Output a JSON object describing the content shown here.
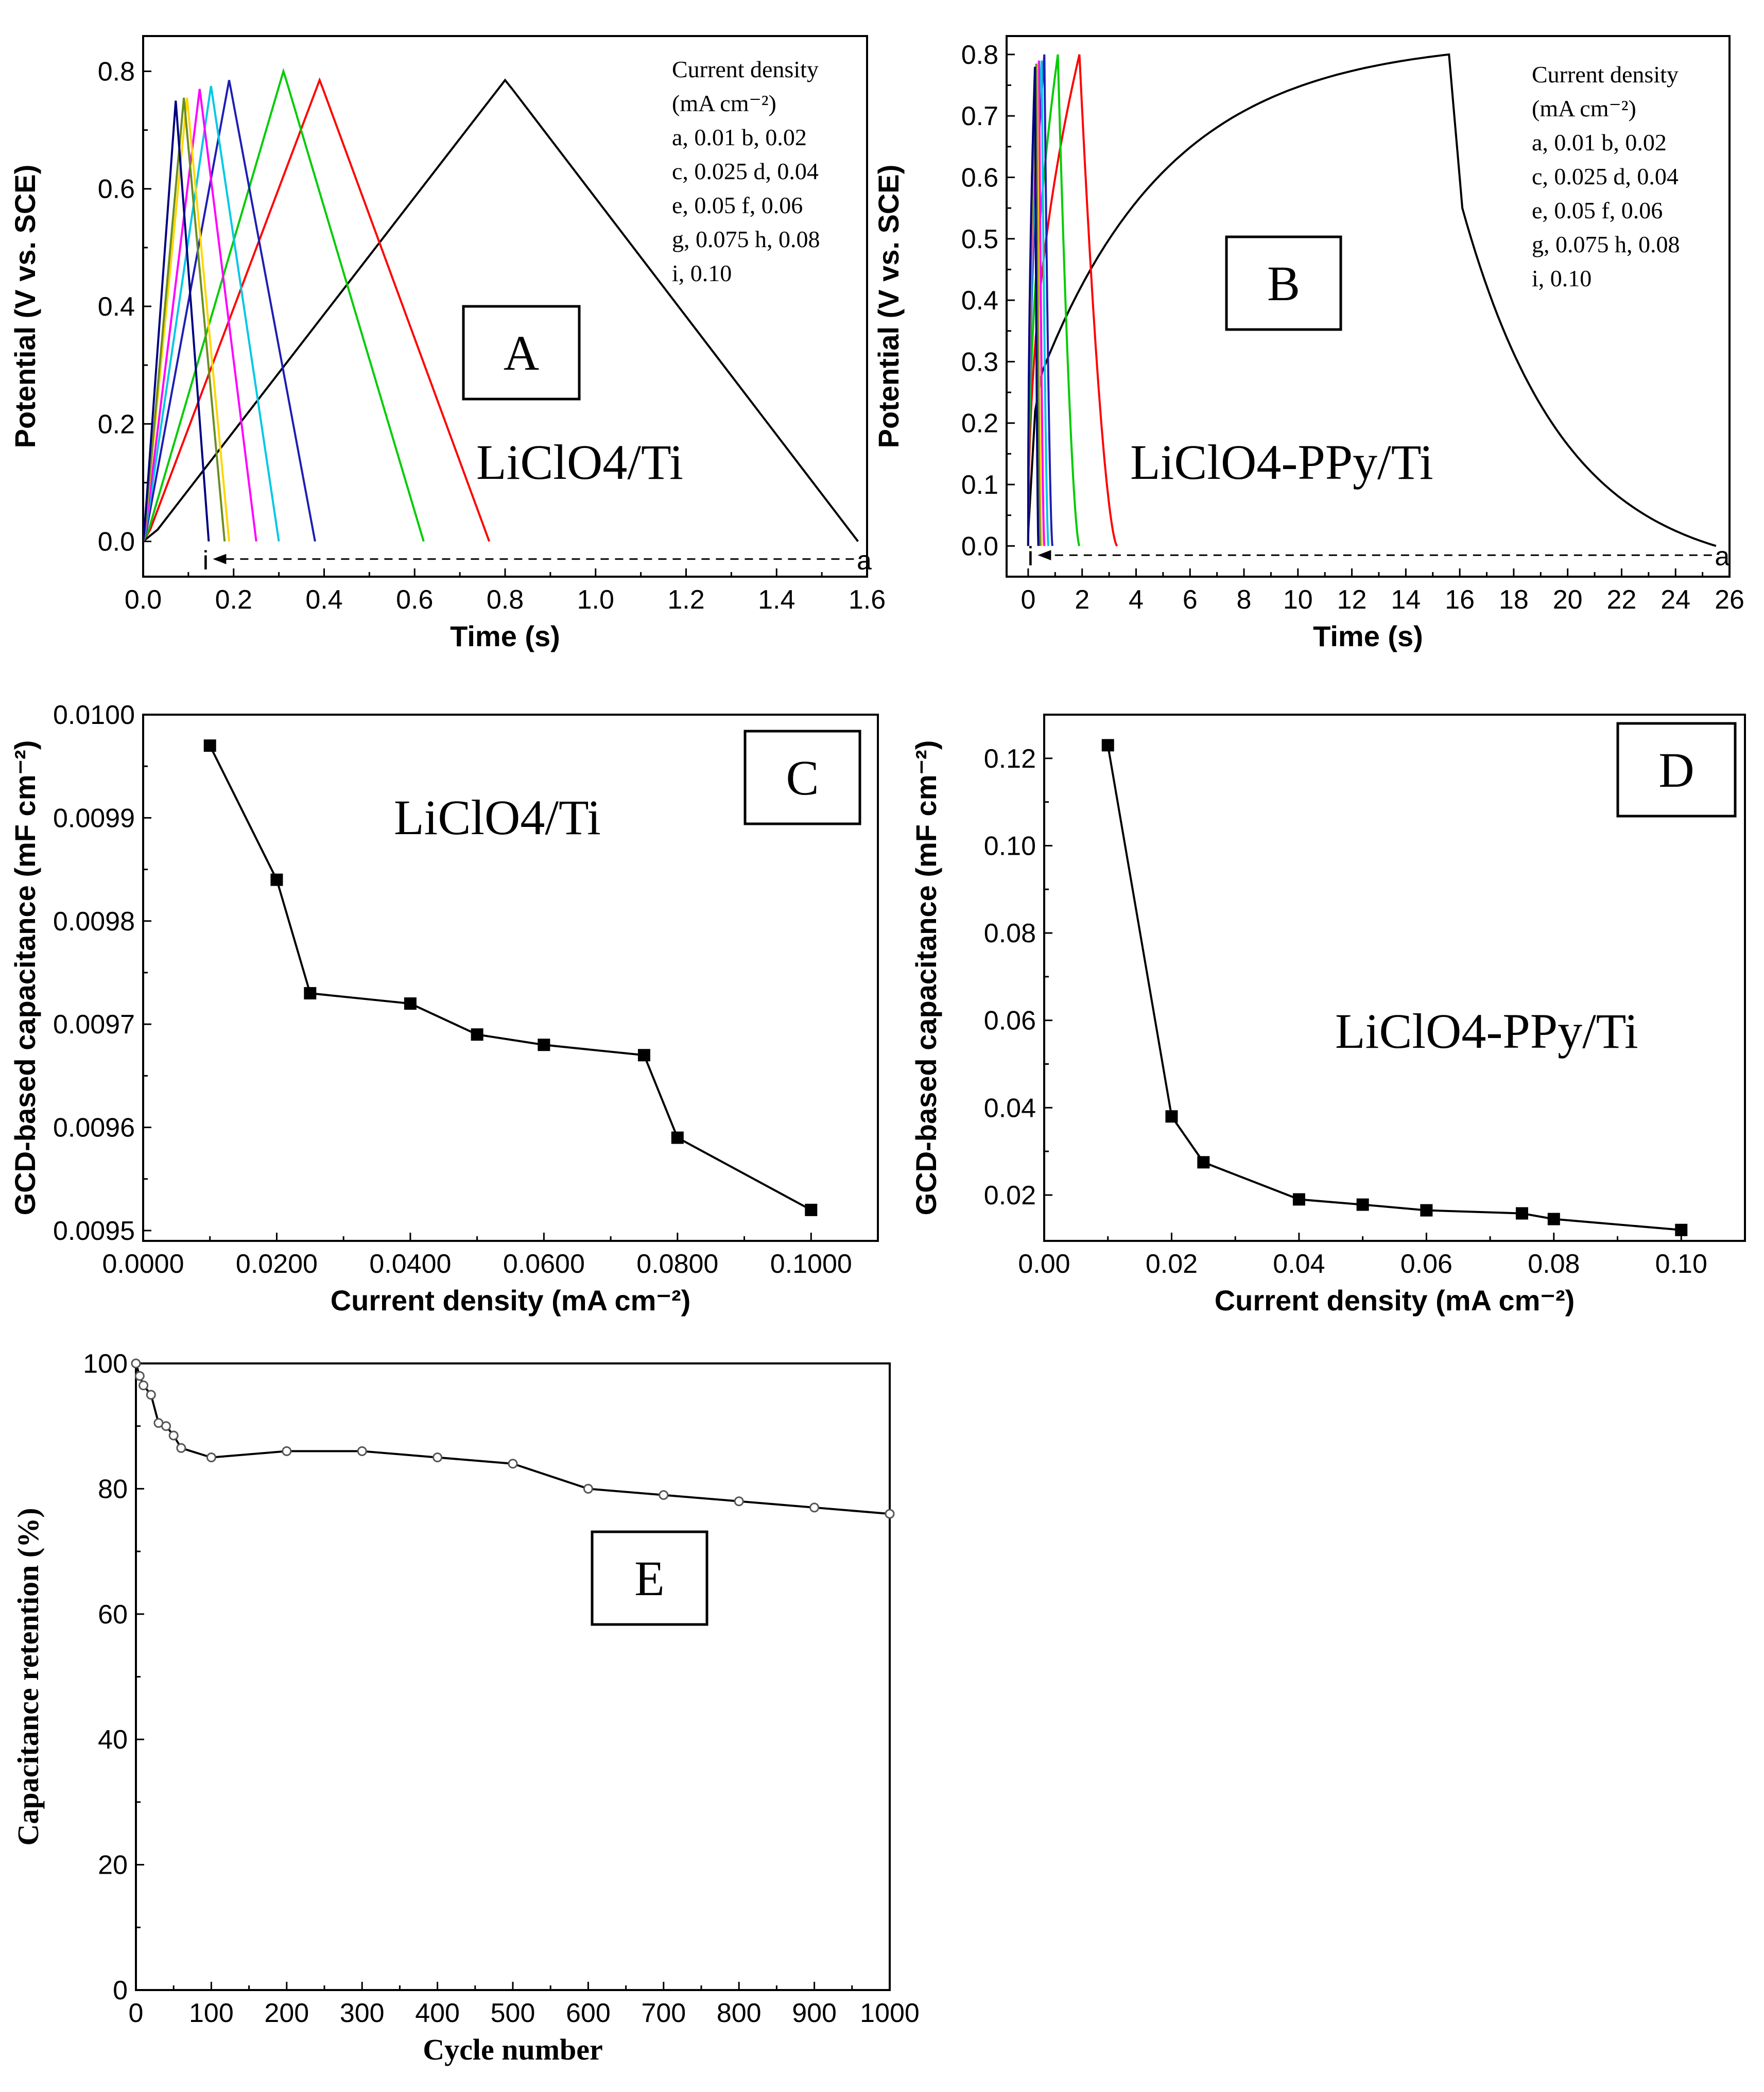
{
  "chart_data": [
    {
      "id": "A",
      "type": "line",
      "panel_label": "A",
      "annotation": "LiClO4/Ti",
      "xlabel": "Time (s)",
      "ylabel": "Potential (V vs. SCE)",
      "xlim": [
        0,
        1.6
      ],
      "ylim": [
        -0.06,
        0.86
      ],
      "xticks": [
        "0.0",
        "0.2",
        "0.4",
        "0.6",
        "0.8",
        "1.0",
        "1.2",
        "1.4",
        "1.6"
      ],
      "yticks": [
        "0.0",
        "0.2",
        "0.4",
        "0.6",
        "0.8"
      ],
      "legend_title": "Current density",
      "legend_unit": "(mA cm⁻²)",
      "legend_lines": [
        "a, 0.01   b, 0.02",
        "c, 0.025 d, 0.04",
        "e, 0.05   f, 0.06",
        "g, 0.075 h, 0.08",
        "i,  0.10"
      ],
      "arrow_labels": {
        "start": "i",
        "end": "a"
      },
      "arrow_y": -0.03,
      "series": [
        {
          "name": "a",
          "color": "#000000",
          "peak_t": 0.8,
          "peak_v": 0.785,
          "end_t": 1.58
        },
        {
          "name": "b",
          "color": "#ff0000",
          "peak_t": 0.39,
          "peak_v": 0.785,
          "end_t": 0.765
        },
        {
          "name": "c",
          "color": "#00cc00",
          "peak_t": 0.31,
          "peak_v": 0.8,
          "end_t": 0.62
        },
        {
          "name": "d",
          "color": "#1e1eb4",
          "peak_t": 0.19,
          "peak_v": 0.785,
          "end_t": 0.38
        },
        {
          "name": "e",
          "color": "#00c8e6",
          "peak_t": 0.15,
          "peak_v": 0.775,
          "end_t": 0.3
        },
        {
          "name": "f",
          "color": "#ff00ff",
          "peak_t": 0.125,
          "peak_v": 0.77,
          "end_t": 0.25
        },
        {
          "name": "g",
          "color": "#ffd700",
          "peak_t": 0.097,
          "peak_v": 0.755,
          "end_t": 0.19
        },
        {
          "name": "h",
          "color": "#6b8e23",
          "peak_t": 0.09,
          "peak_v": 0.755,
          "end_t": 0.18
        },
        {
          "name": "i",
          "color": "#000080",
          "peak_t": 0.072,
          "peak_v": 0.75,
          "end_t": 0.145
        }
      ]
    },
    {
      "id": "B",
      "type": "line",
      "panel_label": "B",
      "annotation": "LiClO4-PPy/Ti",
      "xlabel": "Time (s)",
      "ylabel": "Potential (V vs. SCE)",
      "xlim": [
        -0.8,
        26
      ],
      "ylim": [
        -0.05,
        0.83
      ],
      "xticks": [
        "0",
        "2",
        "4",
        "6",
        "8",
        "10",
        "12",
        "14",
        "16",
        "18",
        "20",
        "22",
        "24",
        "26"
      ],
      "yticks": [
        "0.0",
        "0.1",
        "0.2",
        "0.3",
        "0.4",
        "0.5",
        "0.6",
        "0.7",
        "0.8"
      ],
      "legend_title": "Current density",
      "legend_unit": "(mA cm⁻²)",
      "legend_lines": [
        "a, 0.01    b, 0.02",
        "c, 0.025 d, 0.04",
        "e, 0.05    f, 0.06",
        "g, 0.075 h, 0.08",
        "i, 0.10"
      ],
      "arrow_labels": {
        "start": "i",
        "end": "a"
      },
      "arrow_y": -0.015,
      "series": [
        {
          "name": "a",
          "color": "#000000",
          "peak_t": 15.6,
          "peak_v": 0.8,
          "end_t": 25.5
        },
        {
          "name": "b",
          "color": "#ff0000",
          "peak_t": 1.9,
          "peak_v": 0.8,
          "end_t": 3.3
        },
        {
          "name": "c",
          "color": "#00cc00",
          "peak_t": 1.1,
          "peak_v": 0.8,
          "end_t": 1.9
        },
        {
          "name": "d",
          "color": "#1e1eb4",
          "peak_t": 0.6,
          "peak_v": 0.8,
          "end_t": 0.9
        },
        {
          "name": "e",
          "color": "#00c8e6",
          "peak_t": 0.5,
          "peak_v": 0.79,
          "end_t": 0.75
        },
        {
          "name": "f",
          "color": "#ff00ff",
          "peak_t": 0.4,
          "peak_v": 0.79,
          "end_t": 0.6
        },
        {
          "name": "g",
          "color": "#ffd700",
          "peak_t": 0.33,
          "peak_v": 0.785,
          "end_t": 0.5
        },
        {
          "name": "h",
          "color": "#6b8e23",
          "peak_t": 0.3,
          "peak_v": 0.785,
          "end_t": 0.45
        },
        {
          "name": "i",
          "color": "#000080",
          "peak_t": 0.25,
          "peak_v": 0.78,
          "end_t": 0.38
        }
      ]
    },
    {
      "id": "C",
      "type": "line",
      "panel_label": "C",
      "annotation": "LiClO4/Ti",
      "xlabel": "Current density (mA cm⁻²)",
      "ylabel": "GCD-based capacitance (mF cm⁻²)",
      "xlim": [
        0,
        0.11
      ],
      "ylim": [
        0.00949,
        0.01
      ],
      "xticks": [
        "0.0000",
        "0.0200",
        "0.0400",
        "0.0600",
        "0.0800",
        "0.1000"
      ],
      "yticks": [
        "0.0095",
        "0.0096",
        "0.0097",
        "0.0098",
        "0.0099",
        "0.0100"
      ],
      "x": [
        0.01,
        0.02,
        0.025,
        0.04,
        0.05,
        0.06,
        0.075,
        0.08,
        0.1
      ],
      "y": [
        0.00997,
        0.00984,
        0.00973,
        0.00972,
        0.00969,
        0.00968,
        0.00967,
        0.00959,
        0.00952
      ]
    },
    {
      "id": "D",
      "type": "line",
      "panel_label": "D",
      "annotation": "LiClO4-PPy/Ti",
      "xlabel": "Current density (mA cm⁻²)",
      "ylabel": "GCD-based capacitance (mF cm⁻²)",
      "xlim": [
        0,
        0.11
      ],
      "ylim": [
        0.0095,
        0.13
      ],
      "xticks": [
        "0.00",
        "0.02",
        "0.04",
        "0.06",
        "0.08",
        "0.10"
      ],
      "yticks": [
        "0.02",
        "0.04",
        "0.06",
        "0.08",
        "0.10",
        "0.12"
      ],
      "x": [
        0.01,
        0.02,
        0.025,
        0.04,
        0.05,
        0.06,
        0.075,
        0.08,
        0.1
      ],
      "y": [
        0.123,
        0.038,
        0.0275,
        0.019,
        0.0178,
        0.0165,
        0.0158,
        0.0145,
        0.012
      ]
    },
    {
      "id": "E",
      "type": "line",
      "panel_label": "E",
      "xlabel": "Cycle number",
      "ylabel": "Capacitance  retention (%)",
      "xlim": [
        0,
        1000
      ],
      "ylim": [
        0,
        100
      ],
      "xticks": [
        "0",
        "100",
        "200",
        "300",
        "400",
        "500",
        "600",
        "700",
        "800",
        "900",
        "1000"
      ],
      "yticks": [
        "0",
        "20",
        "40",
        "60",
        "80",
        "100"
      ],
      "x": [
        0,
        5,
        10,
        20,
        30,
        40,
        50,
        60,
        100,
        200,
        300,
        400,
        500,
        600,
        700,
        800,
        900,
        1000
      ],
      "y": [
        100,
        98,
        96.5,
        95,
        90.5,
        90,
        88.5,
        86.5,
        85,
        86,
        86,
        85,
        84,
        80,
        79,
        78,
        77,
        76
      ]
    }
  ]
}
